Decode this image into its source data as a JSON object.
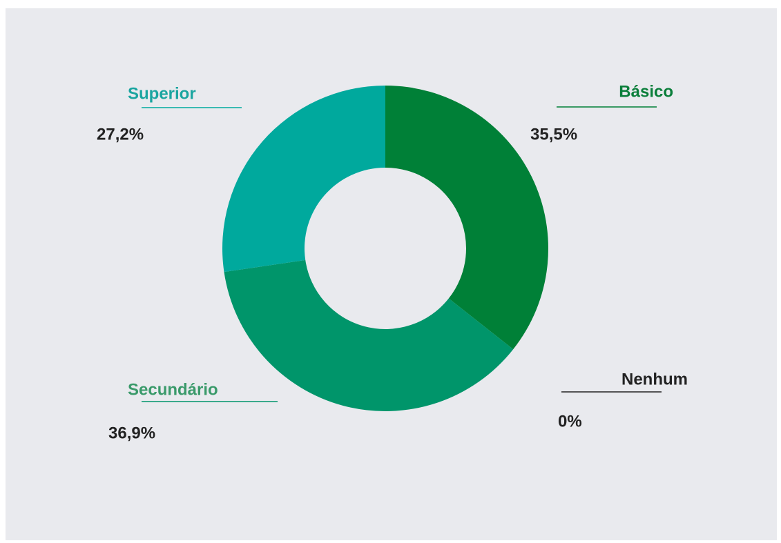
{
  "chart_data": {
    "type": "donut",
    "categories": [
      "Básico",
      "Nenhum",
      "Secundário",
      "Superior"
    ],
    "values": [
      35.5,
      0,
      36.9,
      27.2
    ],
    "value_labels": [
      "35,5%",
      "0%",
      "36,9%",
      "27,2%"
    ],
    "colors": [
      "#008037",
      "#222222",
      "#00956a",
      "#00a99d"
    ]
  }
}
